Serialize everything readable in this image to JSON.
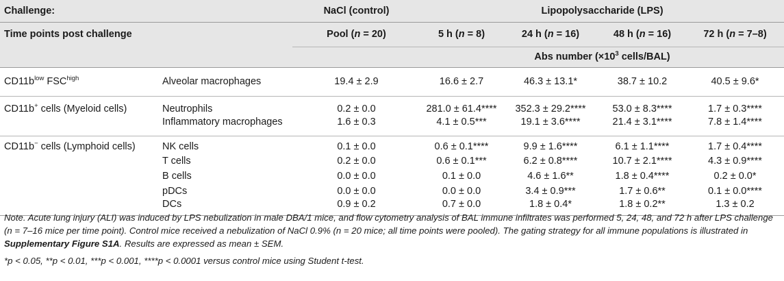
{
  "header": {
    "challenge_label": "Challenge:",
    "nacl_label": "NaCl (control)",
    "lps_label": "Lipopolysaccharide (LPS)",
    "timepoints_label": "Time points post challenge",
    "pool": {
      "name": "Pool",
      "n_sym": "n",
      "n_val": " = 20"
    },
    "t5": {
      "name": "5 h",
      "n_sym": "n",
      "n_val": " = 8"
    },
    "t24": {
      "name": "24 h",
      "n_sym": "n",
      "n_val": " = 16"
    },
    "t48": {
      "name": "48 h",
      "n_sym": "n",
      "n_val": " = 16"
    },
    "t72": {
      "name": "72 h",
      "n_sym": "n",
      "n_val": " = 7–8"
    },
    "abs_number": "Abs number (×10",
    "abs_exp": "3",
    "abs_tail": " cells/BAL)"
  },
  "groups": {
    "g1": {
      "pre": "CD11b",
      "sup1": "low",
      "mid": " FSC",
      "sup2": "high",
      "post": ""
    },
    "g2": {
      "pre": "CD11b",
      "sup1": "+",
      "post": " cells (Myeloid cells)"
    },
    "g3": {
      "pre": "CD11b",
      "sup1": "−",
      "post": " cells (Lymphoid cells)"
    }
  },
  "rows": [
    {
      "cell": "Alveolar macrophages",
      "nacl": "19.4 ± 2.9",
      "h5": "16.6 ± 2.7",
      "h24": "46.3 ± 13.1*",
      "h48": "38.7 ± 10.2",
      "h72": "40.5 ± 9.6*"
    },
    {
      "cell": "Neutrophils",
      "nacl": "0.2 ± 0.0",
      "h5": "281.0 ± 61.4****",
      "h24": "352.3 ± 29.2****",
      "h48": "53.0 ± 8.3****",
      "h72": "1.7 ± 0.3****"
    },
    {
      "cell": "Inflammatory macrophages",
      "nacl": "1.6 ± 0.3",
      "h5": "4.1 ± 0.5***",
      "h24": "19.1 ± 3.6****",
      "h48": "21.4 ± 3.1****",
      "h72": "7.8 ± 1.4****"
    },
    {
      "cell": "NK cells",
      "nacl": "0.1 ± 0.0",
      "h5": "0.6 ± 0.1****",
      "h24": "9.9 ± 1.6****",
      "h48": "6.1 ± 1.1****",
      "h72": "1.7 ± 0.4****"
    },
    {
      "cell": "T cells",
      "nacl": "0.2 ± 0.0",
      "h5": "0.6 ± 0.1***",
      "h24": "6.2 ± 0.8****",
      "h48": "10.7 ± 2.1****",
      "h72": "4.3 ± 0.9****"
    },
    {
      "cell": "B cells",
      "nacl": "0.0 ± 0.0",
      "h5": "0.1 ± 0.0",
      "h24": "4.6 ± 1.6**",
      "h48": "1.8 ± 0.4****",
      "h72": "0.2 ± 0.0*"
    },
    {
      "cell": "pDCs",
      "nacl": "0.0 ± 0.0",
      "h5": "0.0 ± 0.0",
      "h24": "3.4 ± 0.9***",
      "h48": "1.7 ± 0.6**",
      "h72": "0.1 ± 0.0****"
    },
    {
      "cell": "DCs",
      "nacl": "0.9 ± 0.2",
      "h5": "0.7 ± 0.0",
      "h24": "1.8 ± 0.4*",
      "h48": "1.8 ± 0.2**",
      "h72": "1.3 ± 0.2"
    }
  ],
  "notes": {
    "line1_a": "Note. Acute lung injury (ALI) was induced by LPS nebulization in male DBA/1 mice, and flow cytometry analysis of BAL immune infiltrates was performed 5, 24, 48, and 72 h after LPS challenge (n = 7–16 mice per time point). Control mice received a nebulization of NaCl 0.9% (n = 20 mice; all time points were pooled). The gating strategy for all immune populations is illustrated in ",
    "line1_link": "Supplementary Figure S1A",
    "line1_b": ". Results are expressed as mean ± SEM.",
    "line2": "*p < 0.05, **p < 0.01, ***p < 0.001, ****p < 0.0001 versus control mice using Student t-test."
  }
}
